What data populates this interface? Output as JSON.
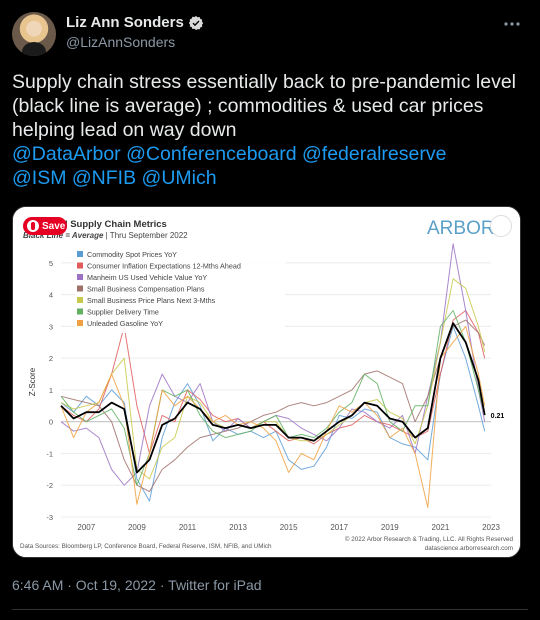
{
  "author": {
    "name": "Liz Ann Sonders",
    "handle": "@LizAnnSonders"
  },
  "tweet": {
    "text": "Supply chain stress essentially back to pre-pandemic level (black line is average) ; commodities & used car prices helping lead on way down",
    "mentions": [
      "@DataArbor",
      "@Conferenceboard",
      "@federalreserve",
      "@ISM",
      "@NFIB",
      "@UMich"
    ],
    "timestamp": "6:46 AM · Oct 19, 2022 · Twitter for iPad"
  },
  "pin_button": {
    "label": "Save"
  },
  "colors": {
    "background": "#000000",
    "text": "#e7e9ea",
    "link": "#1d9bf0",
    "secondary": "#8b98a5"
  },
  "icons": [
    "verified-badge-icon",
    "more-options-icon",
    "pinterest-icon",
    "visual-search-icon"
  ],
  "chart_data": {
    "type": "line",
    "title": "…ed Supply Chain Metrics",
    "subtitle_prefix": "Black Line = Average",
    "subtitle_suffix": " | Thru September 2022",
    "brand": "ARBOR",
    "ylabel": "Z-Score",
    "ylim": [
      -3,
      5.5
    ],
    "yticks": [
      5,
      4,
      3,
      2,
      1,
      0,
      -1,
      -2,
      -3
    ],
    "xticks": [
      "2007",
      "2009",
      "2011",
      "2013",
      "2015",
      "2017",
      "2019",
      "2021",
      "2023"
    ],
    "xlim": [
      2006,
      2023
    ],
    "end_label": "0.21",
    "source": "Data Sources: Bloomberg LP, Conference Board, Federal Reserve, ISM, NFIB, and UMich",
    "copyright": "© 2022 Arbor Research & Trading, LLC. All Rights Reserved",
    "website": "datascience.arborresearch.com",
    "series": [
      {
        "name": "Commodity Spot Prices YoY",
        "color": "#5b9bd5",
        "x": [
          2006.0,
          2006.5,
          2007.0,
          2007.5,
          2008.0,
          2008.5,
          2009.0,
          2009.5,
          2010.0,
          2010.5,
          2011.0,
          2011.5,
          2012.0,
          2012.5,
          2013.0,
          2013.5,
          2014.0,
          2014.5,
          2015.0,
          2015.5,
          2016.0,
          2016.5,
          2017.0,
          2017.5,
          2018.0,
          2018.5,
          2019.0,
          2019.5,
          2020.0,
          2020.5,
          2021.0,
          2021.5,
          2022.0,
          2022.5,
          2022.75
        ],
        "y": [
          0.6,
          0.3,
          0.8,
          0.5,
          1.0,
          0.6,
          -1.8,
          -2.5,
          -0.5,
          0.6,
          1.2,
          0.5,
          -0.6,
          -0.2,
          -0.4,
          -0.3,
          -0.5,
          -0.3,
          -1.2,
          -1.5,
          -1.4,
          -0.8,
          0.2,
          0.1,
          0.4,
          0.3,
          -0.5,
          -0.7,
          -0.8,
          -1.2,
          1.5,
          3.0,
          2.0,
          0.5,
          -0.3
        ]
      },
      {
        "name": "Consumer Inflation Expectations 12-Mths Ahead",
        "color": "#e05c5c",
        "x": [
          2006.0,
          2006.5,
          2007.0,
          2007.5,
          2008.0,
          2008.5,
          2009.0,
          2009.5,
          2010.0,
          2010.5,
          2011.0,
          2011.5,
          2012.0,
          2012.5,
          2013.0,
          2013.5,
          2014.0,
          2014.5,
          2015.0,
          2015.5,
          2016.0,
          2016.5,
          2017.0,
          2017.5,
          2018.0,
          2018.5,
          2019.0,
          2019.5,
          2020.0,
          2020.5,
          2021.0,
          2021.5,
          2022.0,
          2022.5,
          2022.75
        ],
        "y": [
          0.5,
          0.2,
          0.0,
          0.4,
          1.5,
          3.0,
          0.5,
          -1.0,
          0.2,
          0.0,
          1.0,
          0.7,
          0.2,
          0.0,
          0.1,
          -0.2,
          0.0,
          -0.3,
          -0.6,
          -0.5,
          -0.7,
          -0.4,
          -0.2,
          -0.1,
          0.2,
          0.0,
          -0.1,
          -0.3,
          -0.5,
          -0.3,
          1.5,
          3.2,
          3.5,
          2.8,
          2.0
        ]
      },
      {
        "name": "Manheim US Used Vehicle Value YoY",
        "color": "#9b72c4",
        "x": [
          2006.0,
          2006.5,
          2007.0,
          2007.5,
          2008.0,
          2008.5,
          2009.0,
          2009.5,
          2010.0,
          2010.5,
          2011.0,
          2011.5,
          2012.0,
          2012.5,
          2013.0,
          2013.5,
          2014.0,
          2014.5,
          2015.0,
          2015.5,
          2016.0,
          2016.5,
          2017.0,
          2017.5,
          2018.0,
          2018.5,
          2019.0,
          2019.5,
          2020.0,
          2020.5,
          2021.0,
          2021.5,
          2022.0,
          2022.5,
          2022.75
        ],
        "y": [
          0.0,
          -0.3,
          -0.2,
          -0.5,
          -1.5,
          -2.0,
          -1.6,
          0.5,
          1.5,
          0.8,
          0.6,
          1.2,
          0.0,
          -0.3,
          0.1,
          -0.2,
          0.0,
          0.2,
          0.1,
          -0.2,
          -0.4,
          -0.6,
          -0.2,
          0.4,
          0.3,
          0.0,
          -0.2,
          0.2,
          -1.0,
          0.8,
          2.5,
          5.6,
          3.5,
          1.0,
          0.0
        ]
      },
      {
        "name": "Small Business Compensation Plans",
        "color": "#a0706a",
        "x": [
          2006.0,
          2006.5,
          2007.0,
          2007.5,
          2008.0,
          2008.5,
          2009.0,
          2009.5,
          2010.0,
          2010.5,
          2011.0,
          2011.5,
          2012.0,
          2012.5,
          2013.0,
          2013.5,
          2014.0,
          2014.5,
          2015.0,
          2015.5,
          2016.0,
          2016.5,
          2017.0,
          2017.5,
          2018.0,
          2018.5,
          2019.0,
          2019.5,
          2020.0,
          2020.5,
          2021.0,
          2021.5,
          2022.0,
          2022.5,
          2022.75
        ],
        "y": [
          0.8,
          0.7,
          0.6,
          0.5,
          0.0,
          -1.2,
          -2.0,
          -2.2,
          -1.5,
          -1.2,
          -0.8,
          -0.5,
          -0.4,
          -0.3,
          -0.2,
          0.0,
          0.2,
          0.3,
          0.5,
          0.6,
          0.5,
          0.6,
          0.8,
          1.0,
          1.5,
          1.6,
          1.4,
          1.2,
          0.0,
          0.8,
          2.0,
          3.0,
          3.2,
          2.8,
          2.4
        ]
      },
      {
        "name": "Small Business Price Plans Next 3-Mths",
        "color": "#c8c84a",
        "x": [
          2006.0,
          2006.5,
          2007.0,
          2007.5,
          2008.0,
          2008.5,
          2009.0,
          2009.5,
          2010.0,
          2010.5,
          2011.0,
          2011.5,
          2012.0,
          2012.5,
          2013.0,
          2013.5,
          2014.0,
          2014.5,
          2015.0,
          2015.5,
          2016.0,
          2016.5,
          2017.0,
          2017.5,
          2018.0,
          2018.5,
          2019.0,
          2019.5,
          2020.0,
          2020.5,
          2021.0,
          2021.5,
          2022.0,
          2022.5,
          2022.75
        ],
        "y": [
          0.6,
          0.4,
          0.5,
          0.6,
          1.5,
          2.0,
          -1.5,
          -1.8,
          -0.8,
          -0.5,
          0.8,
          0.6,
          0.0,
          -0.2,
          -0.1,
          -0.2,
          0.0,
          0.0,
          -0.5,
          -0.6,
          -0.6,
          -0.4,
          -0.1,
          0.2,
          0.6,
          0.7,
          0.3,
          0.1,
          -0.7,
          0.5,
          2.5,
          4.5,
          4.2,
          3.0,
          2.2
        ]
      },
      {
        "name": "Supplier Delivery Time",
        "color": "#62b062",
        "x": [
          2006.0,
          2006.5,
          2007.0,
          2007.5,
          2008.0,
          2008.5,
          2009.0,
          2009.5,
          2010.0,
          2010.5,
          2011.0,
          2011.5,
          2012.0,
          2012.5,
          2013.0,
          2013.5,
          2014.0,
          2014.5,
          2015.0,
          2015.5,
          2016.0,
          2016.5,
          2017.0,
          2017.5,
          2018.0,
          2018.5,
          2019.0,
          2019.5,
          2020.0,
          2020.5,
          2021.0,
          2021.5,
          2022.0,
          2022.5,
          2022.75
        ],
        "y": [
          0.8,
          0.3,
          0.0,
          0.2,
          0.4,
          -0.2,
          -2.0,
          -1.0,
          1.0,
          0.8,
          1.0,
          0.2,
          -0.3,
          -0.5,
          -0.4,
          -0.3,
          0.0,
          0.2,
          -0.5,
          -0.4,
          -0.5,
          -0.2,
          0.3,
          0.6,
          1.5,
          1.2,
          0.0,
          -0.3,
          0.5,
          0.5,
          3.0,
          3.5,
          2.5,
          1.0,
          0.2
        ]
      },
      {
        "name": "Unleaded Gasoline YoY",
        "color": "#f0a040",
        "x": [
          2006.0,
          2006.5,
          2007.0,
          2007.5,
          2008.0,
          2008.5,
          2009.0,
          2009.5,
          2010.0,
          2010.5,
          2011.0,
          2011.5,
          2012.0,
          2012.5,
          2013.0,
          2013.5,
          2014.0,
          2014.5,
          2015.0,
          2015.5,
          2016.0,
          2016.5,
          2017.0,
          2017.5,
          2018.0,
          2018.5,
          2019.0,
          2019.5,
          2020.0,
          2020.5,
          2021.0,
          2021.5,
          2022.0,
          2022.5,
          2022.75
        ],
        "y": [
          0.5,
          -0.5,
          0.3,
          0.6,
          1.5,
          0.5,
          -2.6,
          -1.0,
          1.0,
          0.5,
          0.8,
          0.4,
          0.0,
          0.2,
          -0.1,
          0.0,
          -0.2,
          -0.6,
          -1.6,
          -1.0,
          -1.2,
          -0.3,
          0.5,
          0.3,
          0.6,
          0.2,
          -0.5,
          -0.2,
          -1.0,
          -2.7,
          2.0,
          2.5,
          3.0,
          1.5,
          0.5
        ]
      },
      {
        "name": "Average",
        "color": "#000000",
        "x": [
          2006.0,
          2006.5,
          2007.0,
          2007.5,
          2008.0,
          2008.5,
          2009.0,
          2009.5,
          2010.0,
          2010.5,
          2011.0,
          2011.5,
          2012.0,
          2012.5,
          2013.0,
          2013.5,
          2014.0,
          2014.5,
          2015.0,
          2015.5,
          2016.0,
          2016.5,
          2017.0,
          2017.5,
          2018.0,
          2018.5,
          2019.0,
          2019.5,
          2020.0,
          2020.5,
          2021.0,
          2021.5,
          2022.0,
          2022.5,
          2022.75
        ],
        "y": [
          0.5,
          0.1,
          0.3,
          0.3,
          0.6,
          0.4,
          -1.6,
          -1.2,
          -0.1,
          0.1,
          0.6,
          0.4,
          -0.1,
          -0.2,
          -0.1,
          -0.2,
          -0.1,
          -0.1,
          -0.5,
          -0.5,
          -0.6,
          -0.3,
          0.0,
          0.2,
          0.6,
          0.5,
          0.1,
          0.0,
          -0.5,
          -0.2,
          2.0,
          3.1,
          2.5,
          1.3,
          0.21
        ]
      }
    ]
  }
}
